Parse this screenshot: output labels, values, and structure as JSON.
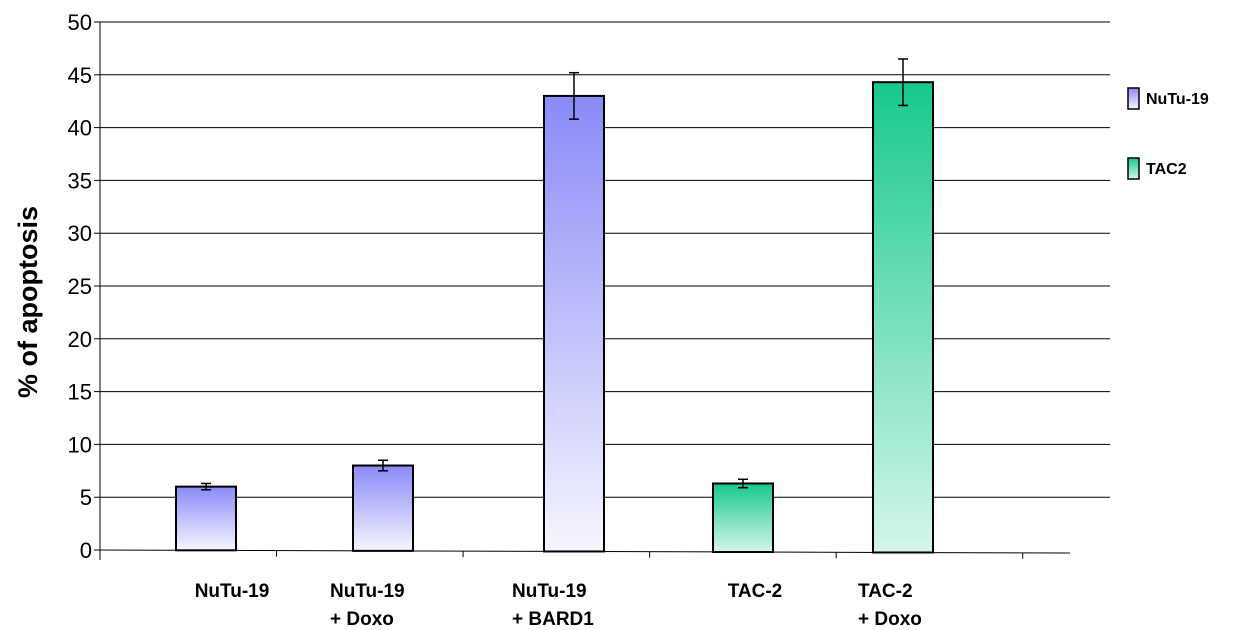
{
  "chart_data": {
    "type": "bar",
    "ylabel": "% of apoptosis",
    "ylim": [
      0,
      50
    ],
    "yticks": [
      0,
      5,
      10,
      15,
      20,
      25,
      30,
      35,
      40,
      45,
      50
    ],
    "grid": true,
    "legend_position": "right",
    "categories": [
      [
        "NuTu-19"
      ],
      [
        "NuTu-19",
        "+ Doxo"
      ],
      [
        "NuTu-19",
        "+ BARD1"
      ],
      [
        "TAC-2"
      ],
      [
        "TAC-2",
        "+ Doxo"
      ]
    ],
    "bars": [
      {
        "category": 0,
        "series": "NuTu-19",
        "value": 6.0,
        "error": 0.3
      },
      {
        "category": 1,
        "series": "NuTu-19",
        "value": 8.0,
        "error": 0.5
      },
      {
        "category": 2,
        "series": "NuTu-19",
        "value": 43.0,
        "error": 2.2
      },
      {
        "category": 3,
        "series": "TAC2",
        "value": 6.3,
        "error": 0.4
      },
      {
        "category": 4,
        "series": "TAC2",
        "value": 44.3,
        "error": 2.2
      }
    ],
    "legend": [
      {
        "name": "NuTu-19",
        "color_top": "#8a8af8",
        "color_bottom": "#f6f6ff"
      },
      {
        "name": "TAC2",
        "color_top": "#17c98c",
        "color_bottom": "#d4f6ec"
      }
    ]
  }
}
